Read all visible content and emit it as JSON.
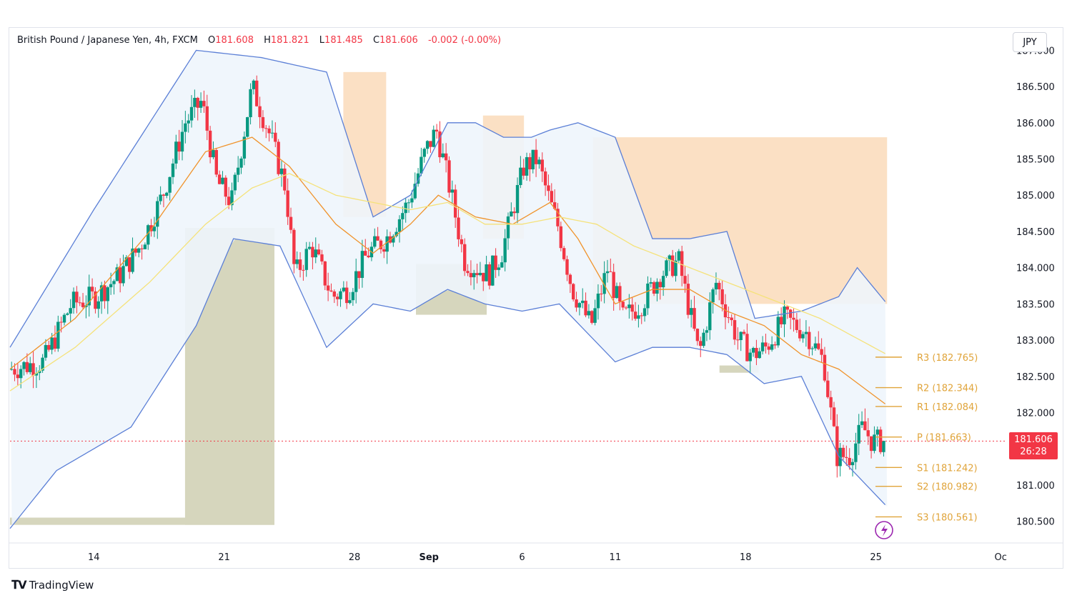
{
  "header": {
    "symbol": "British Pound / Japanese Yen, 4h, FXCM",
    "open_label": "O",
    "open": "181.608",
    "high_label": "H",
    "high": "181.821",
    "low_label": "L",
    "low": "181.485",
    "close_label": "C",
    "close": "181.606",
    "change": "-0.002 (-0.00%)"
  },
  "currency_button": "JPY",
  "price_tag": {
    "price": "181.606",
    "countdown": "26:28"
  },
  "branding": {
    "text": "TradingView"
  },
  "colors": {
    "up": "#089981",
    "down": "#f23645",
    "bollinger": "#5b7fd6",
    "ma_fast": "#f0932b",
    "ma_slow": "#f5e27a",
    "pivot": "#e0a43a",
    "supply_zone": "#fbe0c4",
    "demand_zone": "#d6d6bd",
    "band_fill": "#eef5fc"
  },
  "chart_data": {
    "type": "candlestick",
    "title": "British Pound / Japanese Yen, 4h, FXCM",
    "ylim": [
      180.2,
      187.3
    ],
    "y_ticks": [
      "187.000",
      "186.500",
      "186.000",
      "185.500",
      "185.000",
      "184.500",
      "184.000",
      "183.500",
      "183.000",
      "182.500",
      "182.000",
      "181.500",
      "181.000",
      "180.500"
    ],
    "x_ticks": [
      "14",
      "21",
      "28",
      "Sep",
      "6",
      "11",
      "18",
      "25",
      "Oc"
    ],
    "x_tick_days": [
      14,
      21,
      28,
      32,
      37,
      42,
      49,
      56,
      62.7
    ],
    "x_range_days": [
      9.5,
      63
    ],
    "last_price": 181.606,
    "pivot_levels": [
      {
        "label": "R3",
        "value": 182.765
      },
      {
        "label": "R2",
        "value": 182.344
      },
      {
        "label": "R1",
        "value": 182.084
      },
      {
        "label": "P",
        "value": 181.663
      },
      {
        "label": "S1",
        "value": 181.242
      },
      {
        "label": "S2",
        "value": 180.982
      },
      {
        "label": "S3",
        "value": 180.561
      }
    ],
    "path_days": [
      9.5,
      11.3,
      12.8,
      14.1,
      15.4,
      16.5,
      17.7,
      18.9,
      19.8,
      20.6,
      21.4,
      22.5,
      23.5,
      24.3,
      24.8,
      25.7,
      26.8,
      27.7,
      28.7,
      29.7,
      30.9,
      31.8,
      32.4,
      33.2,
      33.9,
      34.5,
      35.2,
      35.9,
      36.6,
      37.1,
      37.8,
      38.5,
      38.9,
      39.7,
      40.7,
      41.6,
      42.4,
      43.4,
      44.4,
      45.4,
      46.5,
      47.4,
      48.6,
      49.4,
      50.1,
      51.1,
      52.3,
      53.2,
      53.9,
      54.6,
      55.3,
      55.8,
      56.4
    ],
    "path_prices": [
      182.6,
      182.7,
      183.5,
      183.6,
      183.9,
      184.3,
      185.0,
      186.0,
      186.3,
      185.2,
      184.9,
      186.5,
      185.8,
      185.1,
      183.9,
      184.3,
      183.6,
      183.7,
      184.2,
      184.4,
      184.9,
      185.6,
      185.9,
      185.0,
      184.1,
      184.0,
      183.9,
      184.2,
      184.9,
      185.4,
      185.5,
      184.9,
      184.6,
      183.7,
      183.2,
      184.0,
      183.3,
      183.5,
      183.9,
      184.1,
      182.8,
      183.8,
      183.0,
      182.8,
      182.9,
      183.3,
      183.1,
      182.7,
      181.4,
      181.4,
      181.8,
      181.6,
      181.606
    ],
    "indicators": [
      {
        "name": "Bollinger upper",
        "days": [
          9.5,
          14,
          18.5,
          19.5,
          23,
          26.5,
          29,
          31,
          33,
          34.5,
          36,
          37.5,
          38.5,
          40,
          42,
          44,
          46,
          48,
          49.5,
          52,
          54,
          55,
          56.6
        ],
        "values": [
          182.9,
          184.8,
          186.6,
          187.0,
          186.9,
          186.7,
          184.7,
          185.0,
          186.0,
          186.0,
          185.8,
          185.8,
          185.9,
          186.0,
          185.8,
          184.4,
          184.4,
          184.5,
          183.3,
          183.4,
          183.6,
          184.0,
          183.5
        ]
      },
      {
        "name": "Bollinger lower",
        "days": [
          9.5,
          12,
          16,
          19.5,
          21.5,
          24,
          26.5,
          29,
          31,
          33,
          35,
          37,
          39,
          42,
          44,
          46,
          48,
          50,
          52,
          54,
          56.6
        ],
        "values": [
          180.4,
          181.2,
          181.8,
          183.2,
          184.4,
          184.3,
          182.9,
          183.5,
          183.4,
          183.7,
          183.5,
          183.4,
          183.5,
          182.7,
          182.9,
          182.9,
          182.8,
          182.4,
          182.5,
          181.4,
          180.7
        ]
      },
      {
        "name": "MA fast",
        "days": [
          9.5,
          13,
          17,
          20,
          22.5,
          24.5,
          27,
          29,
          31,
          32.5,
          34.5,
          36.5,
          38.5,
          40,
          42,
          44,
          46,
          48,
          50,
          52,
          54,
          56.6
        ],
        "values": [
          182.6,
          183.3,
          184.5,
          185.6,
          185.8,
          185.4,
          184.6,
          184.2,
          184.6,
          185.0,
          184.7,
          184.6,
          184.9,
          184.4,
          183.5,
          183.7,
          183.7,
          183.4,
          183.2,
          182.8,
          182.6,
          182.1
        ]
      },
      {
        "name": "MA slow",
        "days": [
          9.5,
          13,
          17,
          20,
          22.5,
          24.5,
          27,
          29,
          31,
          33,
          35,
          37,
          39,
          41,
          43,
          45,
          47,
          49,
          51,
          53,
          56.6
        ],
        "values": [
          182.3,
          182.9,
          183.8,
          184.6,
          185.1,
          185.3,
          185.0,
          184.9,
          184.8,
          184.9,
          184.6,
          184.6,
          184.7,
          184.6,
          184.3,
          184.1,
          183.9,
          183.7,
          183.5,
          183.3,
          182.8
        ]
      }
    ],
    "supply_zones": [
      {
        "from_day": 27.4,
        "to_day": 29.7,
        "low": 184.7,
        "high": 186.7
      },
      {
        "from_day": 34.9,
        "to_day": 37.1,
        "low": 184.4,
        "high": 186.1
      },
      {
        "from_day": 40.8,
        "to_day": 56.6,
        "low": 183.5,
        "high": 185.8
      }
    ],
    "demand_zones": [
      {
        "from_day": 9.5,
        "to_day": 23.7,
        "low": 180.45,
        "high": 180.55
      },
      {
        "from_day": 18.9,
        "to_day": 23.7,
        "low": 180.45,
        "high": 184.55
      },
      {
        "from_day": 31.3,
        "to_day": 35.1,
        "low": 183.35,
        "high": 184.05
      },
      {
        "from_day": 47.6,
        "to_day": 49.7,
        "low": 182.55,
        "high": 182.65
      }
    ]
  }
}
